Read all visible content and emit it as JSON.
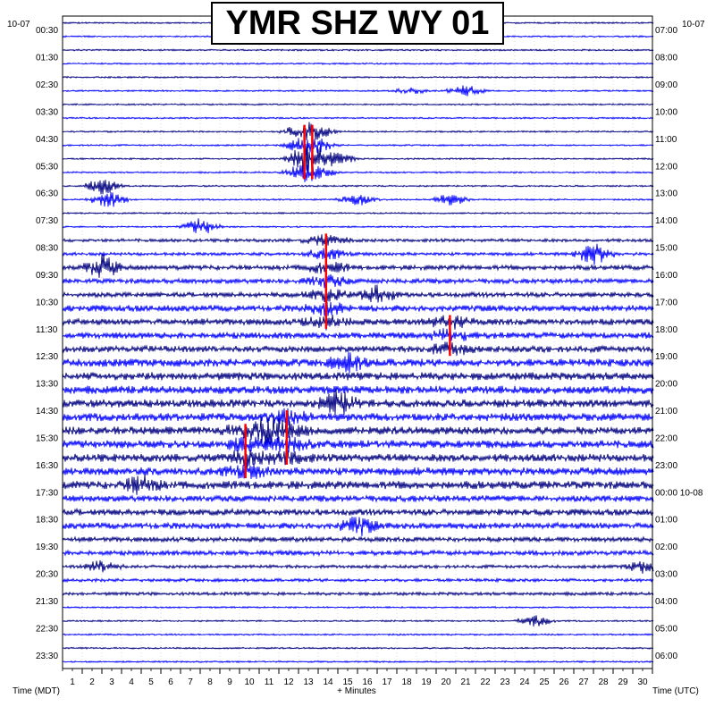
{
  "chart_data": {
    "type": "helicorder",
    "title": "YMR SHZ WY 01",
    "left_date": "10-07",
    "right_date": "10-07",
    "left_axis_label": "Time (MDT)",
    "right_axis_label": "Time (UTC)",
    "x_axis_label": "+ Minutes",
    "x_ticks": [
      "1",
      "2",
      "3",
      "4",
      "5",
      "6",
      "7",
      "8",
      "9",
      "10",
      "11",
      "12",
      "13",
      "14",
      "15",
      "16",
      "17",
      "18",
      "19",
      "20",
      "21",
      "22",
      "23",
      "24",
      "25",
      "26",
      "27",
      "28",
      "29",
      "30"
    ],
    "xlim": [
      0,
      30
    ],
    "left_time_labels": [
      "00:30",
      "01:30",
      "02:30",
      "03:30",
      "04:30",
      "05:30",
      "06:30",
      "07:30",
      "08:30",
      "09:30",
      "10:30",
      "11:30",
      "12:30",
      "13:30",
      "14:30",
      "15:30",
      "16:30",
      "17:30",
      "18:30",
      "19:30",
      "20:30",
      "21:30",
      "22:30",
      "23:30"
    ],
    "right_time_labels": [
      "07:00",
      "08:00",
      "09:00",
      "10:00",
      "11:00",
      "12:00",
      "13:00",
      "14:00",
      "15:00",
      "16:00",
      "17:00",
      "18:00",
      "19:00",
      "20:00",
      "21:00",
      "22:00",
      "23:00",
      "00:00 10-08",
      "01:00",
      "02:00",
      "03:00",
      "04:00",
      "05:00",
      "06:00"
    ],
    "rows_per_day": 48,
    "minutes_per_row": 30,
    "trace_colors": [
      "#000080",
      "#0000ff"
    ],
    "clip_color": "#ff0000",
    "grid": true,
    "row_noise_amplitude": [
      1,
      1,
      1,
      1,
      1,
      1,
      1,
      1,
      1,
      1,
      1,
      1,
      1,
      1,
      1,
      1,
      2,
      2,
      3,
      3,
      3,
      4,
      4,
      4,
      4,
      5,
      5,
      5,
      5,
      5,
      5,
      5,
      5,
      5,
      5,
      4,
      4,
      4,
      3,
      3,
      2,
      2,
      2,
      1,
      1,
      1,
      1,
      1
    ],
    "clipped_events": [
      {
        "row": 8,
        "minute": 12.3,
        "rows_spanned": 4
      },
      {
        "row": 8,
        "minute": 12.7,
        "rows_spanned": 4
      },
      {
        "row": 16,
        "minute": 13.4,
        "rows_spanned": 7
      },
      {
        "row": 22,
        "minute": 19.7,
        "rows_spanned": 3
      },
      {
        "row": 29,
        "minute": 11.4,
        "rows_spanned": 4
      },
      {
        "row": 30,
        "minute": 9.3,
        "rows_spanned": 4
      }
    ],
    "events": [
      {
        "row": 5,
        "minute": 20.5,
        "size": 2
      },
      {
        "row": 5,
        "minute": 17.7,
        "size": 1
      },
      {
        "row": 10,
        "minute": 12.5,
        "size": 3
      },
      {
        "row": 10,
        "minute": 14.0,
        "size": 2
      },
      {
        "row": 12,
        "minute": 2.0,
        "size": 3
      },
      {
        "row": 13,
        "minute": 2.3,
        "size": 3
      },
      {
        "row": 13,
        "minute": 15.0,
        "size": 2
      },
      {
        "row": 13,
        "minute": 19.7,
        "size": 2
      },
      {
        "row": 15,
        "minute": 7.0,
        "size": 3
      },
      {
        "row": 17,
        "minute": 27.0,
        "size": 4
      },
      {
        "row": 18,
        "minute": 2.0,
        "size": 4
      },
      {
        "row": 20,
        "minute": 16.0,
        "size": 3
      },
      {
        "row": 25,
        "minute": 14.5,
        "size": 3
      },
      {
        "row": 28,
        "minute": 14.0,
        "size": 4
      },
      {
        "row": 30,
        "minute": 10.5,
        "size": 4
      },
      {
        "row": 34,
        "minute": 4.0,
        "size": 3
      },
      {
        "row": 37,
        "minute": 15.0,
        "size": 3
      },
      {
        "row": 40,
        "minute": 2.0,
        "size": 2
      },
      {
        "row": 40,
        "minute": 29.5,
        "size": 2
      },
      {
        "row": 44,
        "minute": 24.0,
        "size": 2
      }
    ]
  }
}
